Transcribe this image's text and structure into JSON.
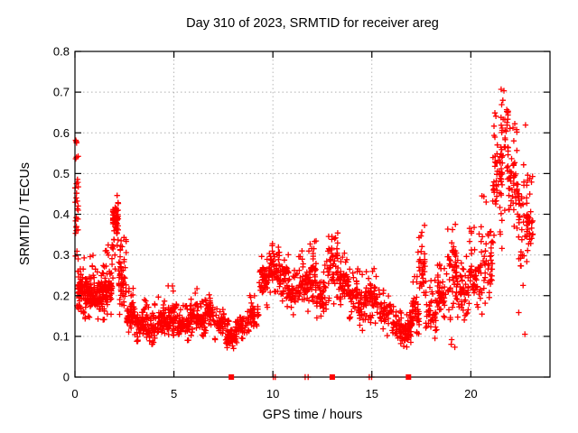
{
  "chart_data": {
    "type": "scatter",
    "title": "Day 310 of 2023, SRMTID for receiver areg",
    "xlabel": "GPS time / hours",
    "ylabel": "SRMTID / TECUs",
    "xlim": [
      0,
      24
    ],
    "ylim": [
      0,
      0.8
    ],
    "xticks": [
      0,
      5,
      10,
      15,
      20
    ],
    "xtick_labels": [
      "0",
      "5",
      "10",
      "15",
      "20"
    ],
    "yticks": [
      0,
      0.1,
      0.2,
      0.3,
      0.4,
      0.5,
      0.6,
      0.7,
      0.8
    ],
    "ytick_labels": [
      "0",
      "0.1",
      "0.2",
      "0.3",
      "0.4",
      "0.5",
      "0.6",
      "0.7",
      "0.8"
    ],
    "grid": true,
    "legend": "none",
    "marker": "plus",
    "marker_color": "#ff0000",
    "grid_color": "#b0b0b0",
    "border_color": "#000000",
    "background_color": "#ffffff",
    "series_bins_format": [
      "t_start_h",
      "t_end_h",
      "y_min",
      "y_max",
      "y_dense_center",
      "n_points"
    ],
    "series_bins": [
      [
        0.0,
        0.18,
        0.17,
        0.63,
        0.42,
        30
      ],
      [
        0.12,
        0.5,
        0.15,
        0.32,
        0.21,
        60
      ],
      [
        0.5,
        1.0,
        0.14,
        0.3,
        0.21,
        75
      ],
      [
        1.0,
        1.5,
        0.14,
        0.28,
        0.2,
        70
      ],
      [
        1.5,
        1.9,
        0.15,
        0.33,
        0.22,
        60
      ],
      [
        1.9,
        2.2,
        0.24,
        0.45,
        0.38,
        60
      ],
      [
        2.2,
        2.6,
        0.14,
        0.36,
        0.24,
        55
      ],
      [
        2.6,
        3.0,
        0.11,
        0.22,
        0.15,
        50
      ],
      [
        3.0,
        3.6,
        0.08,
        0.19,
        0.13,
        60
      ],
      [
        3.6,
        4.2,
        0.08,
        0.18,
        0.12,
        55
      ],
      [
        4.2,
        4.7,
        0.1,
        0.21,
        0.14,
        50
      ],
      [
        4.7,
        5.2,
        0.1,
        0.23,
        0.15,
        55
      ],
      [
        5.2,
        5.8,
        0.09,
        0.18,
        0.13,
        55
      ],
      [
        5.8,
        6.2,
        0.1,
        0.22,
        0.15,
        45
      ],
      [
        6.2,
        6.6,
        0.1,
        0.19,
        0.14,
        45
      ],
      [
        6.6,
        7.0,
        0.11,
        0.21,
        0.16,
        55
      ],
      [
        7.0,
        7.6,
        0.09,
        0.17,
        0.13,
        50
      ],
      [
        7.6,
        8.2,
        0.07,
        0.14,
        0.1,
        60
      ],
      [
        8.2,
        8.8,
        0.09,
        0.17,
        0.13,
        45
      ],
      [
        8.8,
        9.3,
        0.11,
        0.22,
        0.15,
        40
      ],
      [
        9.3,
        9.8,
        0.16,
        0.3,
        0.24,
        50
      ],
      [
        9.8,
        10.3,
        0.2,
        0.33,
        0.27,
        55
      ],
      [
        10.3,
        10.8,
        0.17,
        0.31,
        0.24,
        50
      ],
      [
        10.8,
        11.3,
        0.13,
        0.27,
        0.2,
        45
      ],
      [
        11.3,
        11.8,
        0.16,
        0.31,
        0.23,
        50
      ],
      [
        11.8,
        12.2,
        0.18,
        0.34,
        0.25,
        50
      ],
      [
        12.2,
        12.7,
        0.12,
        0.28,
        0.2,
        45
      ],
      [
        12.7,
        13.3,
        0.18,
        0.385,
        0.29,
        55
      ],
      [
        13.3,
        13.8,
        0.16,
        0.31,
        0.23,
        50
      ],
      [
        13.8,
        14.3,
        0.14,
        0.28,
        0.21,
        45
      ],
      [
        14.3,
        14.8,
        0.1,
        0.26,
        0.18,
        45
      ],
      [
        14.8,
        15.4,
        0.13,
        0.27,
        0.2,
        50
      ],
      [
        15.4,
        16.0,
        0.1,
        0.22,
        0.16,
        45
      ],
      [
        16.0,
        16.5,
        0.08,
        0.18,
        0.12,
        45
      ],
      [
        16.5,
        17.0,
        0.07,
        0.16,
        0.11,
        50
      ],
      [
        17.0,
        17.4,
        0.1,
        0.25,
        0.16,
        40
      ],
      [
        17.3,
        17.7,
        0.15,
        0.42,
        0.26,
        35
      ],
      [
        17.7,
        18.3,
        0.09,
        0.24,
        0.16,
        45
      ],
      [
        18.3,
        18.8,
        0.13,
        0.28,
        0.2,
        45
      ],
      [
        18.8,
        19.3,
        0.06,
        0.38,
        0.26,
        55
      ],
      [
        19.3,
        19.9,
        0.14,
        0.3,
        0.21,
        50
      ],
      [
        19.9,
        20.5,
        0.16,
        0.37,
        0.25,
        50
      ],
      [
        20.5,
        21.1,
        0.13,
        0.46,
        0.28,
        50
      ],
      [
        21.1,
        21.6,
        0.3,
        0.65,
        0.5,
        55
      ],
      [
        21.5,
        21.9,
        0.4,
        0.716,
        0.58,
        45
      ],
      [
        21.9,
        22.4,
        0.33,
        0.63,
        0.46,
        50
      ],
      [
        22.4,
        22.9,
        0.1,
        0.62,
        0.38,
        45
      ],
      [
        22.8,
        23.15,
        0.28,
        0.5,
        0.38,
        35
      ]
    ],
    "on_axis_markers": {
      "square_hours": [
        7.9,
        13.0,
        16.85
      ],
      "plus_hours": [
        10.02,
        10.12,
        11.63,
        11.78,
        14.87,
        14.99
      ]
    }
  }
}
